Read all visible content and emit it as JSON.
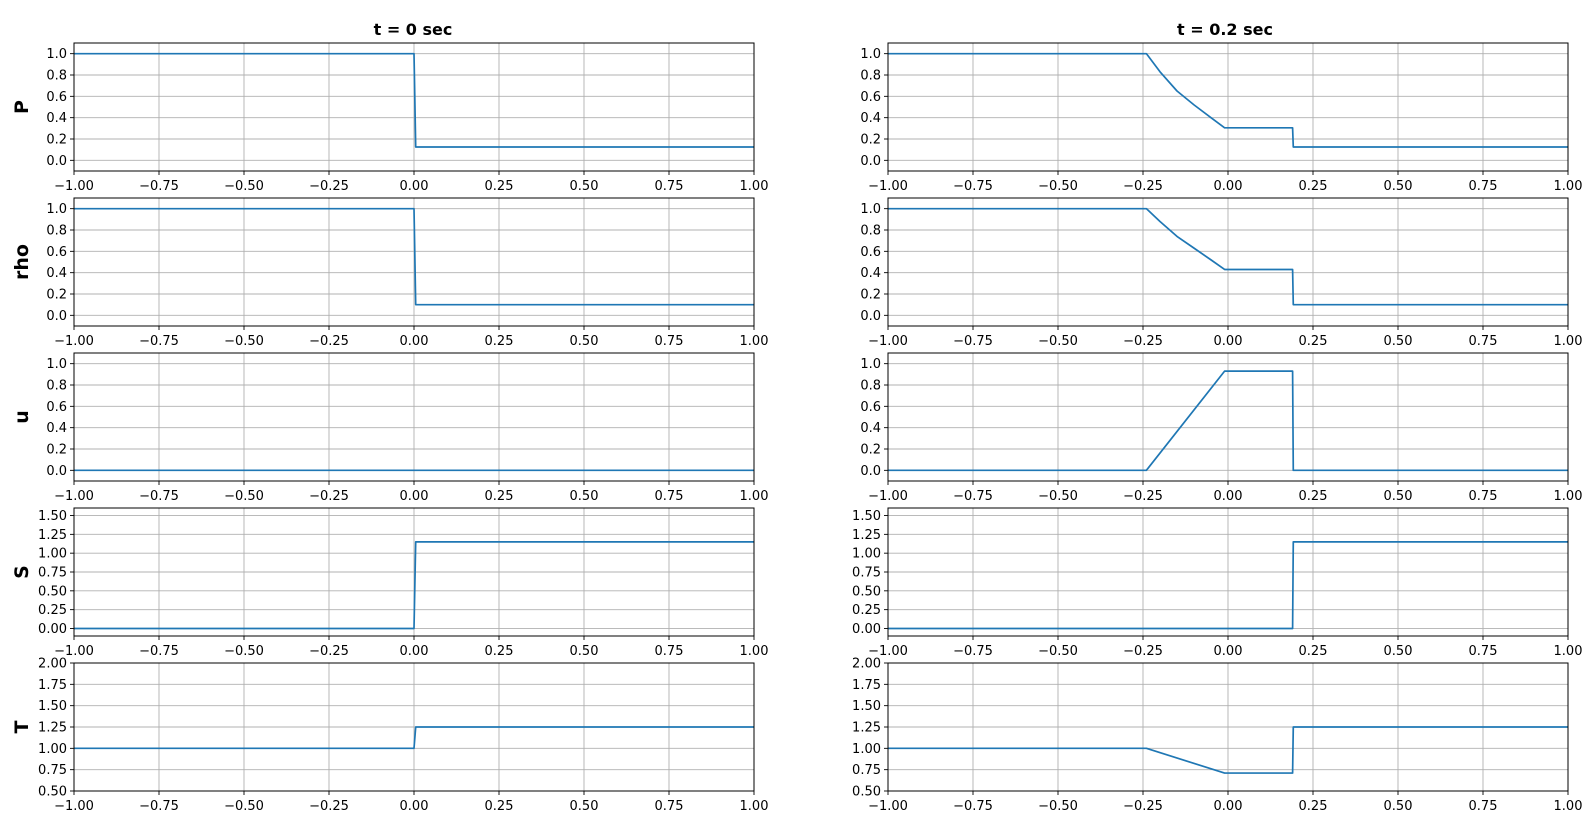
{
  "figure": {
    "column_titles": [
      "t = 0 sec",
      "t = 0.2 sec"
    ],
    "row_labels": [
      "P",
      "rho",
      "u",
      "S",
      "T"
    ],
    "line_color": "#1f77b4",
    "grid_color": "#b0b0b0"
  },
  "chart_data": [
    {
      "id": "P-t0",
      "type": "line",
      "title": "t = 0 sec",
      "xlabel": "",
      "ylabel": "P",
      "xlim": [
        -1,
        1
      ],
      "ylim": [
        -0.1,
        1.1
      ],
      "xticks": [
        "−1.00",
        "−0.75",
        "−0.50",
        "−0.25",
        "0.00",
        "0.25",
        "0.50",
        "0.75",
        "1.00"
      ],
      "yticks": [
        "0.0",
        "0.2",
        "0.4",
        "0.6",
        "0.8",
        "1.0"
      ],
      "grid": true,
      "series": [
        {
          "x": [
            -1,
            0.0,
            0.005,
            1
          ],
          "y": [
            1.0,
            1.0,
            0.125,
            0.125
          ]
        }
      ]
    },
    {
      "id": "P-t02",
      "type": "line",
      "title": "t = 0.2 sec",
      "xlabel": "",
      "ylabel": "",
      "xlim": [
        -1,
        1
      ],
      "ylim": [
        -0.1,
        1.1
      ],
      "xticks": [
        "−1.00",
        "−0.75",
        "−0.50",
        "−0.25",
        "0.00",
        "0.25",
        "0.50",
        "0.75",
        "1.00"
      ],
      "yticks": [
        "0.0",
        "0.2",
        "0.4",
        "0.6",
        "0.8",
        "1.0"
      ],
      "grid": true,
      "series": [
        {
          "x": [
            -1,
            -0.24,
            -0.2,
            -0.15,
            -0.1,
            -0.05,
            -0.01,
            0.19,
            0.192,
            1
          ],
          "y": [
            1.0,
            1.0,
            0.83,
            0.65,
            0.52,
            0.4,
            0.305,
            0.305,
            0.125,
            0.125
          ]
        }
      ]
    },
    {
      "id": "rho-t0",
      "type": "line",
      "title": "",
      "xlabel": "",
      "ylabel": "rho",
      "xlim": [
        -1,
        1
      ],
      "ylim": [
        -0.1,
        1.1
      ],
      "xticks": [
        "−1.00",
        "−0.75",
        "−0.50",
        "−0.25",
        "0.00",
        "0.25",
        "0.50",
        "0.75",
        "1.00"
      ],
      "yticks": [
        "0.0",
        "0.2",
        "0.4",
        "0.6",
        "0.8",
        "1.0"
      ],
      "grid": true,
      "series": [
        {
          "x": [
            -1,
            0.0,
            0.005,
            1
          ],
          "y": [
            1.0,
            1.0,
            0.1,
            0.1
          ]
        }
      ]
    },
    {
      "id": "rho-t02",
      "type": "line",
      "title": "",
      "xlabel": "",
      "ylabel": "",
      "xlim": [
        -1,
        1
      ],
      "ylim": [
        -0.1,
        1.1
      ],
      "xticks": [
        "−1.00",
        "−0.75",
        "−0.50",
        "−0.25",
        "0.00",
        "0.25",
        "0.50",
        "0.75",
        "1.00"
      ],
      "yticks": [
        "0.0",
        "0.2",
        "0.4",
        "0.6",
        "0.8",
        "1.0"
      ],
      "grid": true,
      "series": [
        {
          "x": [
            -1,
            -0.24,
            -0.2,
            -0.15,
            -0.1,
            -0.05,
            -0.01,
            0.19,
            0.192,
            1
          ],
          "y": [
            1.0,
            1.0,
            0.88,
            0.74,
            0.63,
            0.52,
            0.43,
            0.43,
            0.1,
            0.1
          ]
        }
      ]
    },
    {
      "id": "u-t0",
      "type": "line",
      "title": "",
      "xlabel": "",
      "ylabel": "u",
      "xlim": [
        -1,
        1
      ],
      "ylim": [
        -0.1,
        1.1
      ],
      "xticks": [
        "−1.00",
        "−0.75",
        "−0.50",
        "−0.25",
        "0.00",
        "0.25",
        "0.50",
        "0.75",
        "1.00"
      ],
      "yticks": [
        "0.0",
        "0.2",
        "0.4",
        "0.6",
        "0.8",
        "1.0"
      ],
      "grid": true,
      "series": [
        {
          "x": [
            -1,
            1
          ],
          "y": [
            0.0,
            0.0
          ]
        }
      ]
    },
    {
      "id": "u-t02",
      "type": "line",
      "title": "",
      "xlabel": "",
      "ylabel": "",
      "xlim": [
        -1,
        1
      ],
      "ylim": [
        -0.1,
        1.1
      ],
      "xticks": [
        "−1.00",
        "−0.75",
        "−0.50",
        "−0.25",
        "0.00",
        "0.25",
        "0.50",
        "0.75",
        "1.00"
      ],
      "yticks": [
        "0.0",
        "0.2",
        "0.4",
        "0.6",
        "0.8",
        "1.0"
      ],
      "grid": true,
      "series": [
        {
          "x": [
            -1,
            -0.24,
            -0.01,
            0.19,
            0.192,
            1
          ],
          "y": [
            0.0,
            0.0,
            0.93,
            0.93,
            0.0,
            0.0
          ]
        }
      ]
    },
    {
      "id": "S-t0",
      "type": "line",
      "title": "",
      "xlabel": "",
      "ylabel": "S",
      "xlim": [
        -1,
        1
      ],
      "ylim": [
        -0.1,
        1.6
      ],
      "xticks": [
        "−1.00",
        "−0.75",
        "−0.50",
        "−0.25",
        "0.00",
        "0.25",
        "0.50",
        "0.75",
        "1.00"
      ],
      "yticks": [
        "0.00",
        "0.25",
        "0.50",
        "0.75",
        "1.00",
        "1.25",
        "1.50"
      ],
      "grid": true,
      "series": [
        {
          "x": [
            -1,
            0.0,
            0.005,
            1
          ],
          "y": [
            0.0,
            0.0,
            1.15,
            1.15
          ]
        }
      ]
    },
    {
      "id": "S-t02",
      "type": "line",
      "title": "",
      "xlabel": "",
      "ylabel": "",
      "xlim": [
        -1,
        1
      ],
      "ylim": [
        -0.1,
        1.6
      ],
      "xticks": [
        "−1.00",
        "−0.75",
        "−0.50",
        "−0.25",
        "0.00",
        "0.25",
        "0.50",
        "0.75",
        "1.00"
      ],
      "yticks": [
        "0.00",
        "0.25",
        "0.50",
        "0.75",
        "1.00",
        "1.25",
        "1.50"
      ],
      "grid": true,
      "series": [
        {
          "x": [
            -1,
            0.19,
            0.192,
            1
          ],
          "y": [
            0.0,
            0.0,
            1.15,
            1.15
          ]
        }
      ]
    },
    {
      "id": "T-t0",
      "type": "line",
      "title": "",
      "xlabel": "",
      "ylabel": "T",
      "xlim": [
        -1,
        1
      ],
      "ylim": [
        0.5,
        2.0
      ],
      "xticks": [
        "−1.00",
        "−0.75",
        "−0.50",
        "−0.25",
        "0.00",
        "0.25",
        "0.50",
        "0.75",
        "1.00"
      ],
      "yticks": [
        "0.50",
        "0.75",
        "1.00",
        "1.25",
        "1.50",
        "1.75",
        "2.00"
      ],
      "grid": true,
      "series": [
        {
          "x": [
            -1,
            0.0,
            0.005,
            1
          ],
          "y": [
            1.0,
            1.0,
            1.25,
            1.25
          ]
        }
      ]
    },
    {
      "id": "T-t02",
      "type": "line",
      "title": "",
      "xlabel": "",
      "ylabel": "",
      "xlim": [
        -1,
        1
      ],
      "ylim": [
        0.5,
        2.0
      ],
      "xticks": [
        "−1.00",
        "−0.75",
        "−0.50",
        "−0.25",
        "0.00",
        "0.25",
        "0.50",
        "0.75",
        "1.00"
      ],
      "yticks": [
        "0.50",
        "0.75",
        "1.00",
        "1.25",
        "1.50",
        "1.75",
        "2.00"
      ],
      "grid": true,
      "series": [
        {
          "x": [
            -1,
            -0.24,
            -0.01,
            0.19,
            0.192,
            1
          ],
          "y": [
            1.0,
            1.0,
            0.71,
            0.71,
            1.25,
            1.25
          ]
        }
      ]
    }
  ]
}
